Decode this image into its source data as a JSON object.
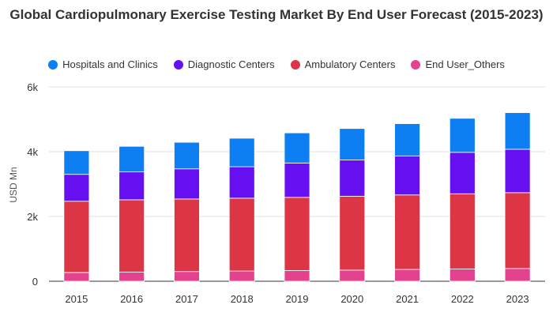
{
  "chart_data": {
    "type": "bar",
    "stacked": true,
    "title": "Global Cardiopulmonary Exercise Testing Market By End User Forecast (2015-2023)",
    "ylabel": "USD Mn",
    "xlabel": "",
    "ylim": [
      0,
      6000
    ],
    "yticks": [
      {
        "value": 0,
        "label": "0"
      },
      {
        "value": 2000,
        "label": "2k"
      },
      {
        "value": 4000,
        "label": "4k"
      },
      {
        "value": 6000,
        "label": "6k"
      }
    ],
    "grid": true,
    "legend_position": "top",
    "categories": [
      "2015",
      "2016",
      "2017",
      "2018",
      "2019",
      "2020",
      "2021",
      "2022",
      "2023"
    ],
    "series": [
      {
        "name": "End User_Others",
        "color": "#e3428f",
        "values": [
          270,
          285,
          300,
          315,
          330,
          345,
          365,
          380,
          395
        ]
      },
      {
        "name": "Ambulatory Centers",
        "color": "#dc3545",
        "values": [
          2200,
          2230,
          2240,
          2250,
          2260,
          2280,
          2300,
          2320,
          2340
        ]
      },
      {
        "name": "Diagnostic Centers",
        "color": "#6610f2",
        "values": [
          830,
          860,
          930,
          970,
          1060,
          1120,
          1200,
          1280,
          1340
        ]
      },
      {
        "name": "Hospitals and Clinics",
        "color": "#0d7ff2",
        "values": [
          730,
          790,
          820,
          880,
          930,
          970,
          1000,
          1050,
          1130
        ]
      }
    ],
    "legend_order": [
      "Hospitals and Clinics",
      "Diagnostic Centers",
      "Ambulatory Centers",
      "End User_Others"
    ]
  }
}
